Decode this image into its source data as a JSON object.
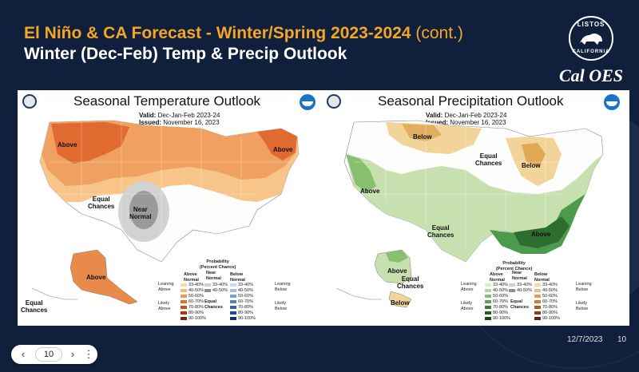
{
  "slide": {
    "title_line1": "El Niño & CA Forecast - Winter/Spring 2023-2024",
    "title_line1_suffix": "(cont.)",
    "title_line2": "Winter (Dec-Feb) Temp & Precip Outlook",
    "date": "12/7/2023",
    "page_number": "10",
    "colors": {
      "accent": "#f6a623",
      "background": "#10203c",
      "title2": "#ffffff"
    }
  },
  "logo": {
    "ring_top": "LISTOS",
    "ring_bottom": "CALIFORNIA",
    "text": "Cal OES"
  },
  "temp_panel": {
    "title": "Seasonal Temperature Outlook",
    "valid_label": "Valid:",
    "valid_value": "Dec-Jan-Feb 2023-24",
    "issued_label": "Issued:",
    "issued_value": "November 16, 2023",
    "labels": {
      "above_west": "Above",
      "above_east": "Above",
      "equal": "Equal\nChances",
      "near_normal": "Near\nNormal",
      "above_alaska": "Above",
      "equal_alaska": "Equal\nChances"
    },
    "legend": {
      "heading": "Probability\n(Percent Chance)",
      "col_above": "Above\nNormal",
      "col_near": "Near\nNormal",
      "col_below": "Below\nNormal",
      "leaning_above": "Leaning\nAbove",
      "likely_above": "Likely\nAbove",
      "leaning_below": "Leaning\nBelow",
      "likely_below": "Likely\nBelow",
      "equal_chances": "Equal\nChances",
      "ranges": [
        "33-40%",
        "40-50%",
        "50-60%",
        "60-70%",
        "70-80%",
        "80-90%",
        "90-100%"
      ]
    }
  },
  "precip_panel": {
    "title": "Seasonal Precipitation Outlook",
    "valid_label": "Valid:",
    "valid_value": "Dec-Jan-Feb 2023-24",
    "issued_label": "Issued:",
    "issued_value": "November 16, 2023",
    "labels": {
      "below_north": "Below",
      "below_lakes": "Below",
      "equal_north": "Equal\nChances",
      "above_west": "Above",
      "equal_south": "Equal\nChances",
      "above_southeast": "Above",
      "above_alaska": "Above",
      "equal_alaska": "Equal\nChances",
      "below_alaska": "Below"
    },
    "legend": {
      "heading": "Probability\n(Percent Chance)",
      "col_above": "Above\nNormal",
      "col_near": "Near\nNormal",
      "col_below": "Below\nNormal",
      "leaning_above": "Leaning\nAbove",
      "likely_above": "Likely\nAbove",
      "leaning_below": "Leaning\nBelow",
      "likely_below": "Likely\nBelow",
      "equal_chances": "Equal\nChances",
      "ranges": [
        "33-40%",
        "40-50%",
        "50-60%",
        "60-70%",
        "70-80%",
        "80-90%",
        "90-100%"
      ]
    }
  },
  "nav": {
    "prev_icon": "chevron-left-icon",
    "next_icon": "chevron-right-icon",
    "more_icon": "more-vertical-icon",
    "page_value": "10",
    "prev_glyph": "‹",
    "next_glyph": "›",
    "more_glyph": "⋮"
  }
}
